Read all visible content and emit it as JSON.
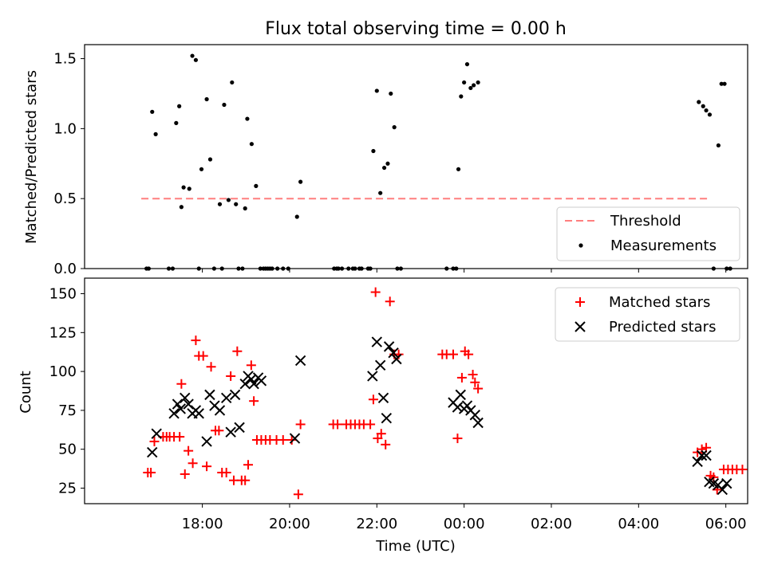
{
  "title": "Flux total observing time = 0.00 h",
  "xlabel": "Time (UTC)",
  "top_ylabel": "Matched/Predicted stars",
  "bottom_ylabel": "Count",
  "x_tick_labels": [
    "18:00",
    "20:00",
    "22:00",
    "00:00",
    "02:00",
    "04:00",
    "06:00"
  ],
  "colors": {
    "threshold": "#ff7f7f",
    "measurement": "#000000",
    "matched": "#ff0000",
    "predicted": "#000000"
  },
  "chart_data": [
    {
      "type": "scatter",
      "ylabel": "Matched/Predicted stars",
      "ylim": [
        0,
        1.6
      ],
      "y_ticks": [
        "0.0",
        "0.5",
        "1.0",
        "1.5"
      ],
      "xlim_hours": [
        15.3,
        30.5
      ],
      "threshold": {
        "label": "Threshold",
        "value": 0.5,
        "x_range_hours": [
          16.6,
          29.6
        ],
        "style": "dashed"
      },
      "legend": {
        "placement": "lower right",
        "entries": [
          "Threshold",
          "Measurements"
        ]
      },
      "series": [
        {
          "name": "Measurements",
          "x_hours": [
            16.72,
            16.77,
            16.85,
            16.93,
            17.23,
            17.32,
            17.4,
            17.47,
            17.52,
            17.57,
            17.7,
            17.77,
            17.85,
            17.92,
            17.98,
            18.1,
            18.18,
            18.27,
            18.4,
            18.45,
            18.5,
            18.6,
            18.68,
            18.77,
            18.83,
            18.92,
            18.98,
            19.03,
            19.13,
            19.23,
            19.33,
            19.4,
            19.45,
            19.5,
            19.55,
            19.6,
            19.72,
            19.85,
            19.97,
            20.17,
            20.25,
            21.02,
            21.08,
            21.12,
            21.2,
            21.35,
            21.45,
            21.5,
            21.6,
            21.65,
            21.8,
            21.85,
            21.92,
            22.0,
            22.08,
            22.17,
            22.25,
            22.32,
            22.4,
            22.47,
            22.55,
            23.6,
            23.75,
            23.82,
            23.87,
            23.93,
            24.0,
            24.07,
            24.15,
            24.22,
            24.32,
            29.38,
            29.48,
            29.55,
            29.63,
            29.72,
            29.83,
            29.9,
            29.97,
            30.02,
            30.1
          ],
          "y": [
            0.0,
            0.0,
            1.12,
            0.96,
            0.0,
            0.0,
            1.04,
            1.16,
            0.44,
            0.58,
            0.57,
            1.52,
            1.49,
            0.0,
            0.71,
            1.21,
            0.78,
            0.0,
            0.46,
            0.0,
            1.17,
            0.49,
            1.33,
            0.46,
            0.0,
            0.0,
            0.43,
            1.07,
            0.89,
            0.59,
            0.0,
            0.0,
            0.0,
            0.0,
            0.0,
            0.0,
            0.0,
            0.0,
            0.0,
            0.37,
            0.62,
            0.0,
            0.0,
            0.0,
            0.0,
            0.0,
            0.0,
            0.0,
            0.0,
            0.0,
            0.0,
            0.0,
            0.84,
            1.27,
            0.54,
            0.72,
            0.75,
            1.25,
            1.01,
            0.0,
            0.0,
            0.0,
            0.0,
            0.0,
            0.71,
            1.23,
            1.33,
            1.46,
            1.29,
            1.31,
            1.33,
            1.19,
            1.16,
            1.13,
            1.1,
            0.0,
            0.88,
            1.32,
            1.32,
            0.0,
            0.0
          ]
        }
      ]
    },
    {
      "type": "scatter",
      "ylabel": "Count",
      "xlabel": "Time (UTC)",
      "ylim": [
        15,
        160
      ],
      "y_ticks": [
        "25",
        "50",
        "75",
        "100",
        "125",
        "150"
      ],
      "xlim_hours": [
        15.3,
        30.5
      ],
      "legend": {
        "placement": "upper right",
        "entries": [
          "Matched stars",
          "Predicted stars"
        ]
      },
      "series": [
        {
          "name": "Matched stars",
          "marker": "+",
          "x_hours": [
            16.75,
            16.82,
            16.9,
            17.1,
            17.18,
            17.25,
            17.35,
            17.48,
            17.52,
            17.6,
            17.68,
            17.78,
            17.85,
            17.92,
            18.02,
            18.1,
            18.2,
            18.3,
            18.38,
            18.45,
            18.55,
            18.65,
            18.72,
            18.8,
            18.9,
            18.98,
            19.05,
            19.12,
            19.18,
            19.25,
            19.35,
            19.45,
            19.55,
            19.7,
            19.85,
            20.05,
            20.2,
            20.25,
            21.0,
            21.1,
            21.3,
            21.4,
            21.5,
            21.6,
            21.7,
            21.85,
            21.92,
            21.97,
            22.02,
            22.1,
            22.2,
            22.3,
            22.4,
            22.5,
            23.5,
            23.6,
            23.75,
            23.85,
            23.95,
            24.02,
            24.1,
            24.2,
            24.25,
            24.32,
            29.35,
            29.45,
            29.55,
            29.65,
            29.72,
            29.8,
            29.95,
            30.05,
            30.15,
            30.25,
            30.38
          ],
          "y": [
            35,
            35,
            55,
            58,
            58,
            58,
            58,
            58,
            92,
            34,
            49,
            41,
            120,
            110,
            110,
            39,
            103,
            62,
            62,
            35,
            35,
            97,
            30,
            113,
            30,
            30,
            40,
            104,
            81,
            56,
            56,
            56,
            56,
            56,
            56,
            56,
            21,
            66,
            66,
            66,
            66,
            66,
            66,
            66,
            66,
            66,
            82,
            151,
            57,
            60,
            53,
            145,
            111,
            111,
            111,
            111,
            111,
            57,
            96,
            113,
            111,
            98,
            93,
            89,
            48,
            50,
            51,
            33,
            32,
            24,
            37,
            37,
            37,
            37,
            37
          ]
        },
        {
          "name": "Predicted stars",
          "marker": "x",
          "x_hours": [
            16.85,
            16.95,
            17.35,
            17.43,
            17.5,
            17.6,
            17.68,
            17.77,
            17.85,
            17.92,
            18.1,
            18.17,
            18.28,
            18.4,
            18.55,
            18.65,
            18.75,
            18.85,
            18.98,
            19.05,
            19.12,
            19.18,
            19.28,
            19.35,
            20.12,
            20.25,
            21.9,
            22.0,
            22.08,
            22.15,
            22.22,
            22.28,
            22.38,
            22.45,
            23.75,
            23.85,
            23.92,
            24.0,
            24.07,
            24.15,
            24.25,
            24.32,
            29.35,
            29.45,
            29.55,
            29.62,
            29.72,
            29.82,
            29.92,
            30.02
          ],
          "y": [
            48,
            60,
            73,
            79,
            76,
            83,
            79,
            73,
            75,
            73,
            55,
            85,
            78,
            75,
            83,
            61,
            85,
            64,
            92,
            97,
            95,
            92,
            96,
            94,
            57,
            107,
            97,
            119,
            104,
            83,
            70,
            116,
            112,
            108,
            80,
            77,
            85,
            76,
            78,
            75,
            72,
            67,
            42,
            46,
            46,
            29,
            28,
            27,
            24,
            28
          ]
        }
      ]
    }
  ]
}
